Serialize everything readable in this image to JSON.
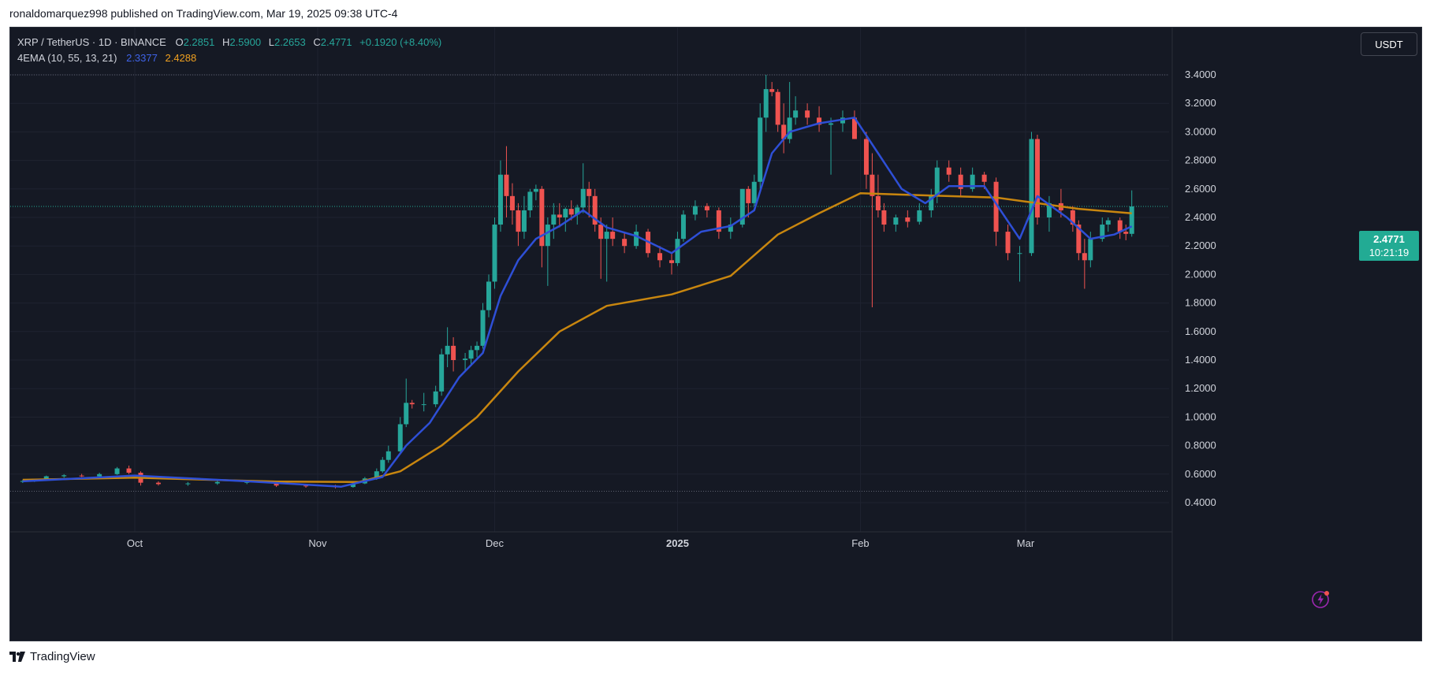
{
  "publish_line": "ronaldomarquez998 published on TradingView.com, Mar 19, 2025 09:38 UTC-4",
  "legend": {
    "symbol": "XRP / TetherUS · 1D · BINANCE",
    "open_label": "O",
    "open": "2.2851",
    "high_label": "H",
    "high": "2.5900",
    "low_label": "L",
    "low": "2.2653",
    "close_label": "C",
    "close": "2.4771",
    "change": "+0.1920 (+8.40%)",
    "indicator_name": "4EMA (10, 55, 13, 21)",
    "ema_fast": "2.3377",
    "ema_slow": "2.4288"
  },
  "currency_button": "USDT",
  "price_tag": {
    "price": "2.4771",
    "countdown": "10:21:19"
  },
  "footer_brand": "TradingView",
  "colors": {
    "background": "#151924",
    "grid": "#1f2330",
    "up": "#26a69a",
    "down": "#ef5350",
    "ema_fast": "#2e4fd6",
    "ema_slow": "#c8860f",
    "axis_text": "#d1d4dc"
  },
  "icons": {
    "flash": "lightning-bolt-icon",
    "brand": "tradingview-logo-icon"
  },
  "chart_data": {
    "type": "candlestick",
    "symbol": "XRPUSDT",
    "interval": "1D",
    "y_axis": {
      "ticks": [
        0.4,
        0.6,
        0.8,
        1.0,
        1.2,
        1.4,
        1.6,
        1.8,
        2.0,
        2.2,
        2.4,
        2.6,
        2.8,
        3.0,
        3.2,
        3.4
      ],
      "tick_labels": [
        "0.4000",
        "0.6000",
        "0.8000",
        "1.0000",
        "1.2000",
        "1.4000",
        "1.6000",
        "1.8000",
        "2.0000",
        "2.2000",
        "2.4000",
        "2.6000",
        "2.8000",
        "3.0000",
        "3.2000",
        "3.4000"
      ],
      "range": [
        0.2,
        3.7
      ]
    },
    "x_axis": {
      "range": [
        "2024-09-12",
        "2025-03-19"
      ],
      "ticks": [
        {
          "date": "2024-10-01",
          "label": "Oct",
          "bold": false
        },
        {
          "date": "2024-11-01",
          "label": "Nov",
          "bold": false
        },
        {
          "date": "2024-12-01",
          "label": "Dec",
          "bold": false
        },
        {
          "date": "2025-01-01",
          "label": "2025",
          "bold": true
        },
        {
          "date": "2025-02-01",
          "label": "Feb",
          "bold": false
        },
        {
          "date": "2025-03-01",
          "label": "Mar",
          "bold": false
        }
      ]
    },
    "reference_lines": [
      3.4,
      0.48
    ],
    "current_price": 2.4771,
    "last_candle": {
      "date": "2025-03-19",
      "open": 2.2851,
      "high": 2.59,
      "low": 2.2653,
      "close": 2.4771
    },
    "series_ohlc": [
      [
        "2024-09-12",
        0.546,
        0.56,
        0.538,
        0.552
      ],
      [
        "2024-09-14",
        0.552,
        0.565,
        0.545,
        0.56
      ],
      [
        "2024-09-16",
        0.56,
        0.59,
        0.552,
        0.585
      ],
      [
        "2024-09-19",
        0.585,
        0.6,
        0.575,
        0.592
      ],
      [
        "2024-09-22",
        0.59,
        0.602,
        0.58,
        0.585
      ],
      [
        "2024-09-25",
        0.585,
        0.61,
        0.58,
        0.6
      ],
      [
        "2024-09-28",
        0.6,
        0.65,
        0.595,
        0.64
      ],
      [
        "2024-09-30",
        0.64,
        0.66,
        0.6,
        0.61
      ],
      [
        "2024-10-02",
        0.61,
        0.62,
        0.52,
        0.54
      ],
      [
        "2024-10-05",
        0.54,
        0.55,
        0.52,
        0.53
      ],
      [
        "2024-10-10",
        0.53,
        0.545,
        0.518,
        0.535
      ],
      [
        "2024-10-15",
        0.535,
        0.56,
        0.525,
        0.545
      ],
      [
        "2024-10-20",
        0.545,
        0.56,
        0.53,
        0.545
      ],
      [
        "2024-10-25",
        0.545,
        0.55,
        0.51,
        0.52
      ],
      [
        "2024-10-30",
        0.52,
        0.53,
        0.505,
        0.515
      ],
      [
        "2024-11-04",
        0.515,
        0.525,
        0.5,
        0.51
      ],
      [
        "2024-11-07",
        0.51,
        0.54,
        0.505,
        0.535
      ],
      [
        "2024-11-09",
        0.535,
        0.58,
        0.53,
        0.57
      ],
      [
        "2024-11-11",
        0.57,
        0.64,
        0.56,
        0.62
      ],
      [
        "2024-11-12",
        0.62,
        0.72,
        0.61,
        0.7
      ],
      [
        "2024-11-13",
        0.7,
        0.8,
        0.68,
        0.76
      ],
      [
        "2024-11-15",
        0.76,
        1.0,
        0.74,
        0.95
      ],
      [
        "2024-11-16",
        0.95,
        1.27,
        0.93,
        1.1
      ],
      [
        "2024-11-17",
        1.1,
        1.12,
        1.06,
        1.09
      ],
      [
        "2024-11-19",
        1.09,
        1.17,
        1.04,
        1.09
      ],
      [
        "2024-11-21",
        1.09,
        1.22,
        1.07,
        1.18
      ],
      [
        "2024-11-22",
        1.18,
        1.48,
        1.15,
        1.44
      ],
      [
        "2024-11-23",
        1.44,
        1.63,
        1.35,
        1.5
      ],
      [
        "2024-11-24",
        1.5,
        1.56,
        1.32,
        1.4
      ],
      [
        "2024-11-26",
        1.4,
        1.45,
        1.33,
        1.41
      ],
      [
        "2024-11-27",
        1.41,
        1.5,
        1.36,
        1.47
      ],
      [
        "2024-11-28",
        1.47,
        1.53,
        1.42,
        1.5
      ],
      [
        "2024-11-29",
        1.5,
        1.8,
        1.48,
        1.75
      ],
      [
        "2024-11-30",
        1.75,
        2.0,
        1.7,
        1.95
      ],
      [
        "2024-12-01",
        1.95,
        2.4,
        1.9,
        2.35
      ],
      [
        "2024-12-02",
        2.35,
        2.8,
        2.3,
        2.7
      ],
      [
        "2024-12-03",
        2.7,
        2.9,
        2.4,
        2.55
      ],
      [
        "2024-12-04",
        2.55,
        2.64,
        2.35,
        2.45
      ],
      [
        "2024-12-05",
        2.45,
        2.5,
        2.2,
        2.3
      ],
      [
        "2024-12-06",
        2.3,
        2.55,
        2.25,
        2.45
      ],
      [
        "2024-12-07",
        2.45,
        2.6,
        2.4,
        2.58
      ],
      [
        "2024-12-08",
        2.58,
        2.63,
        2.52,
        2.6
      ],
      [
        "2024-12-09",
        2.6,
        2.62,
        2.05,
        2.2
      ],
      [
        "2024-12-10",
        2.2,
        2.4,
        1.92,
        2.35
      ],
      [
        "2024-12-11",
        2.35,
        2.5,
        2.25,
        2.42
      ],
      [
        "2024-12-12",
        2.42,
        2.5,
        2.33,
        2.4
      ],
      [
        "2024-12-13",
        2.4,
        2.47,
        2.3,
        2.46
      ],
      [
        "2024-12-14",
        2.46,
        2.52,
        2.38,
        2.42
      ],
      [
        "2024-12-15",
        2.42,
        2.49,
        2.35,
        2.47
      ],
      [
        "2024-12-16",
        2.47,
        2.78,
        2.43,
        2.6
      ],
      [
        "2024-12-17",
        2.6,
        2.65,
        2.4,
        2.55
      ],
      [
        "2024-12-18",
        2.55,
        2.6,
        2.3,
        2.35
      ],
      [
        "2024-12-19",
        2.35,
        2.4,
        1.97,
        2.25
      ],
      [
        "2024-12-20",
        2.25,
        2.35,
        1.95,
        2.3
      ],
      [
        "2024-12-21",
        2.3,
        2.4,
        2.2,
        2.25
      ],
      [
        "2024-12-23",
        2.25,
        2.3,
        2.15,
        2.2
      ],
      [
        "2024-12-25",
        2.2,
        2.35,
        2.18,
        2.3
      ],
      [
        "2024-12-27",
        2.3,
        2.32,
        2.12,
        2.15
      ],
      [
        "2024-12-29",
        2.15,
        2.2,
        2.05,
        2.1
      ],
      [
        "2024-12-31",
        2.1,
        2.15,
        2.0,
        2.08
      ],
      [
        "2025-01-01",
        2.08,
        2.3,
        2.06,
        2.25
      ],
      [
        "2025-01-02",
        2.25,
        2.45,
        2.23,
        2.42
      ],
      [
        "2025-01-04",
        2.42,
        2.52,
        2.38,
        2.48
      ],
      [
        "2025-01-06",
        2.48,
        2.5,
        2.4,
        2.45
      ],
      [
        "2025-01-08",
        2.45,
        2.47,
        2.25,
        2.3
      ],
      [
        "2025-01-10",
        2.3,
        2.4,
        2.25,
        2.35
      ],
      [
        "2025-01-12",
        2.35,
        2.6,
        2.33,
        2.6
      ],
      [
        "2025-01-13",
        2.6,
        2.62,
        2.4,
        2.5
      ],
      [
        "2025-01-14",
        2.5,
        2.7,
        2.48,
        2.65
      ],
      [
        "2025-01-15",
        2.65,
        3.2,
        2.6,
        3.1
      ],
      [
        "2025-01-16",
        3.1,
        3.4,
        3.0,
        3.3
      ],
      [
        "2025-01-17",
        3.3,
        3.35,
        3.25,
        3.28
      ],
      [
        "2025-01-18",
        3.28,
        3.3,
        3.0,
        3.05
      ],
      [
        "2025-01-19",
        3.05,
        3.2,
        2.85,
        2.95
      ],
      [
        "2025-01-20",
        2.95,
        3.35,
        2.92,
        3.1
      ],
      [
        "2025-01-21",
        3.1,
        3.25,
        3.05,
        3.15
      ],
      [
        "2025-01-23",
        3.15,
        3.2,
        3.05,
        3.1
      ],
      [
        "2025-01-25",
        3.1,
        3.18,
        3.0,
        3.05
      ],
      [
        "2025-01-27",
        3.05,
        3.1,
        2.7,
        3.06
      ],
      [
        "2025-01-29",
        3.06,
        3.15,
        3.0,
        3.1
      ],
      [
        "2025-01-31",
        3.1,
        3.15,
        2.95,
        2.95
      ],
      [
        "2025-02-02",
        2.95,
        3.0,
        2.6,
        2.7
      ],
      [
        "2025-02-03",
        2.7,
        2.85,
        1.77,
        2.55
      ],
      [
        "2025-02-04",
        2.55,
        2.7,
        2.4,
        2.45
      ],
      [
        "2025-02-05",
        2.45,
        2.5,
        2.3,
        2.35
      ],
      [
        "2025-02-07",
        2.35,
        2.42,
        2.3,
        2.4
      ],
      [
        "2025-02-09",
        2.4,
        2.45,
        2.33,
        2.37
      ],
      [
        "2025-02-11",
        2.37,
        2.5,
        2.35,
        2.45
      ],
      [
        "2025-02-13",
        2.45,
        2.6,
        2.4,
        2.55
      ],
      [
        "2025-02-14",
        2.55,
        2.8,
        2.5,
        2.75
      ],
      [
        "2025-02-16",
        2.75,
        2.8,
        2.65,
        2.7
      ],
      [
        "2025-02-18",
        2.7,
        2.75,
        2.55,
        2.6
      ],
      [
        "2025-02-20",
        2.6,
        2.75,
        2.58,
        2.7
      ],
      [
        "2025-02-22",
        2.7,
        2.72,
        2.6,
        2.65
      ],
      [
        "2025-02-24",
        2.65,
        2.68,
        2.2,
        2.3
      ],
      [
        "2025-02-26",
        2.3,
        2.35,
        2.1,
        2.15
      ],
      [
        "2025-02-28",
        2.15,
        2.2,
        1.95,
        2.15
      ],
      [
        "2025-03-02",
        2.15,
        3.0,
        2.13,
        2.95
      ],
      [
        "2025-03-03",
        2.95,
        2.98,
        2.35,
        2.4
      ],
      [
        "2025-03-05",
        2.4,
        2.55,
        2.3,
        2.5
      ],
      [
        "2025-03-07",
        2.5,
        2.6,
        2.4,
        2.45
      ],
      [
        "2025-03-09",
        2.45,
        2.48,
        2.3,
        2.35
      ],
      [
        "2025-03-10",
        2.35,
        2.38,
        2.1,
        2.15
      ],
      [
        "2025-03-11",
        2.15,
        2.25,
        1.9,
        2.1
      ],
      [
        "2025-03-12",
        2.1,
        2.3,
        2.05,
        2.25
      ],
      [
        "2025-03-14",
        2.25,
        2.4,
        2.23,
        2.35
      ],
      [
        "2025-03-15",
        2.35,
        2.4,
        2.3,
        2.38
      ],
      [
        "2025-03-17",
        2.38,
        2.4,
        2.25,
        2.3
      ],
      [
        "2025-03-18",
        2.3,
        2.35,
        2.24,
        2.285
      ],
      [
        "2025-03-19",
        2.2851,
        2.59,
        2.2653,
        2.4771
      ]
    ],
    "ema_fast_points": [
      [
        "2024-09-12",
        0.55
      ],
      [
        "2024-10-01",
        0.59
      ],
      [
        "2024-10-20",
        0.55
      ],
      [
        "2024-11-05",
        0.512
      ],
      [
        "2024-11-12",
        0.58
      ],
      [
        "2024-11-16",
        0.8
      ],
      [
        "2024-11-20",
        0.96
      ],
      [
        "2024-11-25",
        1.28
      ],
      [
        "2024-11-29",
        1.45
      ],
      [
        "2024-12-02",
        1.85
      ],
      [
        "2024-12-05",
        2.1
      ],
      [
        "2024-12-08",
        2.25
      ],
      [
        "2024-12-12",
        2.34
      ],
      [
        "2024-12-16",
        2.45
      ],
      [
        "2024-12-20",
        2.33
      ],
      [
        "2024-12-25",
        2.27
      ],
      [
        "2024-12-31",
        2.15
      ],
      [
        "2025-01-05",
        2.3
      ],
      [
        "2025-01-10",
        2.34
      ],
      [
        "2025-01-14",
        2.45
      ],
      [
        "2025-01-17",
        2.85
      ],
      [
        "2025-01-20",
        3.0
      ],
      [
        "2025-01-25",
        3.06
      ],
      [
        "2025-01-31",
        3.1
      ],
      [
        "2025-02-04",
        2.85
      ],
      [
        "2025-02-08",
        2.6
      ],
      [
        "2025-02-12",
        2.5
      ],
      [
        "2025-02-16",
        2.62
      ],
      [
        "2025-02-22",
        2.62
      ],
      [
        "2025-02-28",
        2.25
      ],
      [
        "2025-03-03",
        2.55
      ],
      [
        "2025-03-08",
        2.4
      ],
      [
        "2025-03-12",
        2.25
      ],
      [
        "2025-03-16",
        2.28
      ],
      [
        "2025-03-19",
        2.3377
      ]
    ],
    "ema_slow_points": [
      [
        "2024-09-12",
        0.56
      ],
      [
        "2024-10-01",
        0.575
      ],
      [
        "2024-10-25",
        0.548
      ],
      [
        "2024-11-08",
        0.545
      ],
      [
        "2024-11-15",
        0.62
      ],
      [
        "2024-11-22",
        0.8
      ],
      [
        "2024-11-28",
        1.0
      ],
      [
        "2024-12-05",
        1.32
      ],
      [
        "2024-12-12",
        1.6
      ],
      [
        "2024-12-20",
        1.78
      ],
      [
        "2024-12-31",
        1.86
      ],
      [
        "2025-01-10",
        1.99
      ],
      [
        "2025-01-18",
        2.28
      ],
      [
        "2025-01-25",
        2.43
      ],
      [
        "2025-02-01",
        2.57
      ],
      [
        "2025-02-08",
        2.56
      ],
      [
        "2025-02-16",
        2.55
      ],
      [
        "2025-02-24",
        2.54
      ],
      [
        "2025-03-03",
        2.5
      ],
      [
        "2025-03-10",
        2.46
      ],
      [
        "2025-03-19",
        2.4288
      ]
    ]
  }
}
